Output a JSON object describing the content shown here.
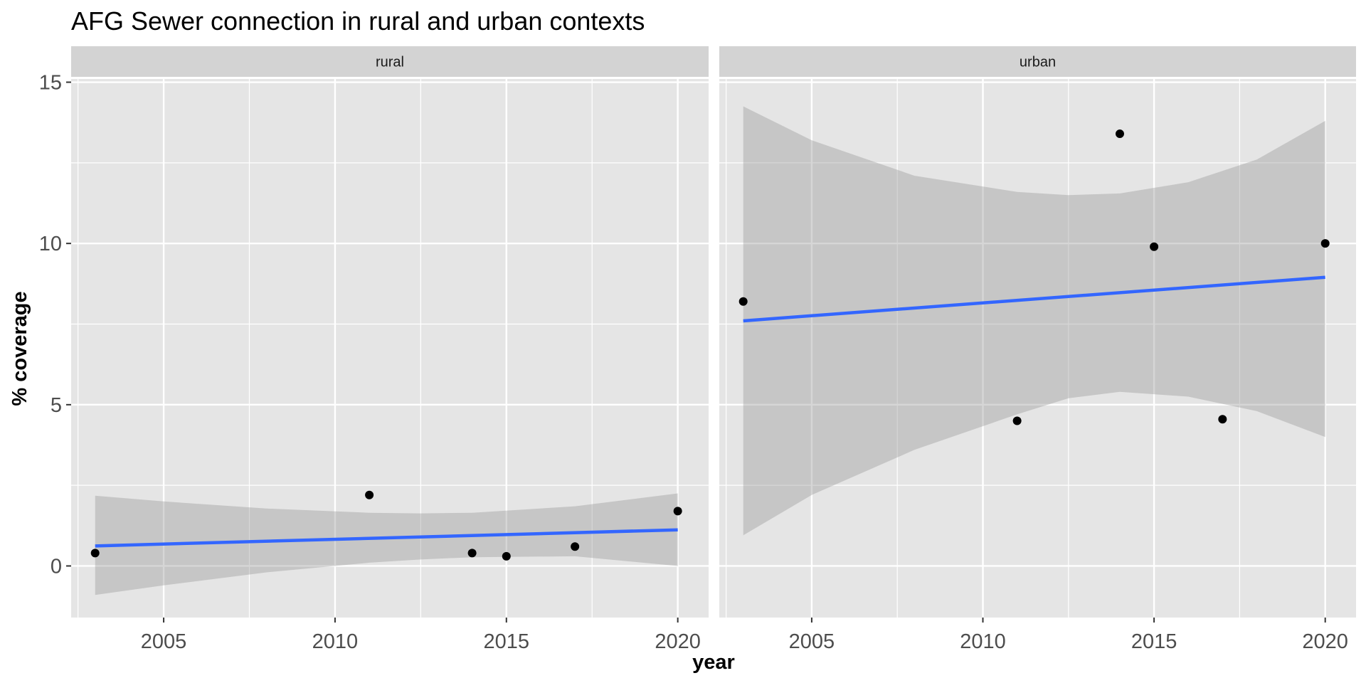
{
  "chart_data": {
    "type": "scatter",
    "title": "AFG Sewer connection in rural and urban contexts",
    "xlabel": "year",
    "ylabel": "% coverage",
    "xlim": [
      2002.3,
      2020.9
    ],
    "ylim": [
      -1.6,
      15.1
    ],
    "x_ticks": [
      2005,
      2010,
      2015,
      2020
    ],
    "y_ticks": [
      0,
      5,
      10,
      15
    ],
    "grid": true,
    "colors": {
      "panel_background": "#e5e5e5",
      "strip_background": "#d3d3d3",
      "gridline": "#ffffff",
      "points": "#000000",
      "fit_line": "#3366ff",
      "confidence_band": "#999999"
    },
    "panels": [
      {
        "strip": "rural",
        "points": [
          {
            "x": 2003,
            "y": 0.4
          },
          {
            "x": 2011,
            "y": 2.2
          },
          {
            "x": 2014,
            "y": 0.4
          },
          {
            "x": 2015,
            "y": 0.3
          },
          {
            "x": 2017,
            "y": 0.6
          },
          {
            "x": 2020,
            "y": 1.7
          }
        ],
        "fit": {
          "x": [
            2003,
            2020
          ],
          "y": [
            0.62,
            1.12
          ]
        },
        "band": {
          "x": [
            2003,
            2005,
            2008,
            2011,
            2012.5,
            2014,
            2017,
            2020
          ],
          "upper": [
            2.18,
            2.0,
            1.78,
            1.65,
            1.63,
            1.65,
            1.85,
            2.25
          ],
          "lower": [
            -0.9,
            -0.6,
            -0.2,
            0.1,
            0.2,
            0.27,
            0.3,
            0.0
          ]
        }
      },
      {
        "strip": "urban",
        "points": [
          {
            "x": 2003,
            "y": 8.2
          },
          {
            "x": 2011,
            "y": 4.5
          },
          {
            "x": 2014,
            "y": 13.4
          },
          {
            "x": 2015,
            "y": 9.9
          },
          {
            "x": 2017,
            "y": 4.55
          },
          {
            "x": 2020,
            "y": 10.0
          }
        ],
        "fit": {
          "x": [
            2003,
            2020
          ],
          "y": [
            7.6,
            8.95
          ]
        },
        "band": {
          "x": [
            2003,
            2005,
            2008,
            2011,
            2012.5,
            2014,
            2016,
            2018,
            2020
          ],
          "upper": [
            14.25,
            13.2,
            12.1,
            11.6,
            11.5,
            11.55,
            11.9,
            12.6,
            13.8
          ],
          "lower": [
            0.95,
            2.2,
            3.6,
            4.7,
            5.2,
            5.4,
            5.25,
            4.8,
            4.0
          ]
        }
      }
    ]
  }
}
